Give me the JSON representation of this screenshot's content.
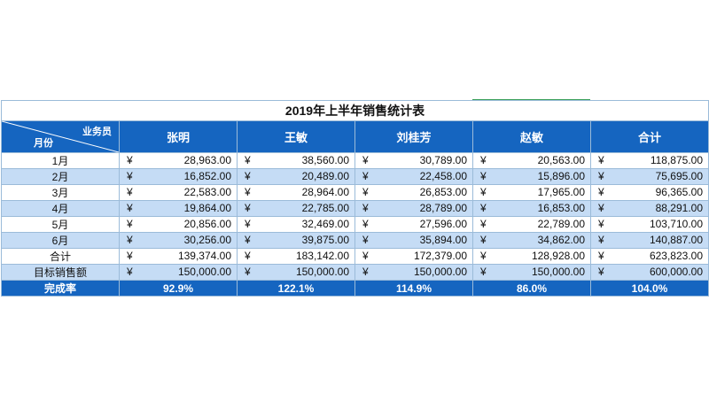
{
  "title": "2019年上半年销售统计表",
  "header": {
    "corner_top": "业务员",
    "corner_bottom": "月份",
    "columns": [
      "张明",
      "王敏",
      "刘桂芳",
      "赵敏",
      "合计"
    ]
  },
  "currency_symbol": "¥",
  "rows": [
    {
      "label": "1月",
      "values": [
        "28,963.00",
        "38,560.00",
        "30,789.00",
        "20,563.00",
        "118,875.00"
      ]
    },
    {
      "label": "2月",
      "values": [
        "16,852.00",
        "20,489.00",
        "22,458.00",
        "15,896.00",
        "75,695.00"
      ]
    },
    {
      "label": "3月",
      "values": [
        "22,583.00",
        "28,964.00",
        "26,853.00",
        "17,965.00",
        "96,365.00"
      ]
    },
    {
      "label": "4月",
      "values": [
        "19,864.00",
        "22,785.00",
        "28,789.00",
        "16,853.00",
        "88,291.00"
      ]
    },
    {
      "label": "5月",
      "values": [
        "20,856.00",
        "32,469.00",
        "27,596.00",
        "22,789.00",
        "103,710.00"
      ]
    },
    {
      "label": "6月",
      "values": [
        "30,256.00",
        "39,875.00",
        "35,894.00",
        "34,862.00",
        "140,887.00"
      ]
    },
    {
      "label": "合计",
      "values": [
        "139,374.00",
        "183,142.00",
        "172,379.00",
        "128,928.00",
        "623,823.00"
      ]
    },
    {
      "label": "目标销售额",
      "values": [
        "150,000.00",
        "150,000.00",
        "150,000.00",
        "150,000.00",
        "600,000.00"
      ]
    }
  ],
  "completion": {
    "label": "完成率",
    "values": [
      "92.9%",
      "122.1%",
      "114.9%",
      "86.0%",
      "104.0%"
    ]
  },
  "colors": {
    "header_bg": "#1565c0",
    "stripe_bg": "#c5dcf5",
    "border": "#9bbbd9"
  }
}
